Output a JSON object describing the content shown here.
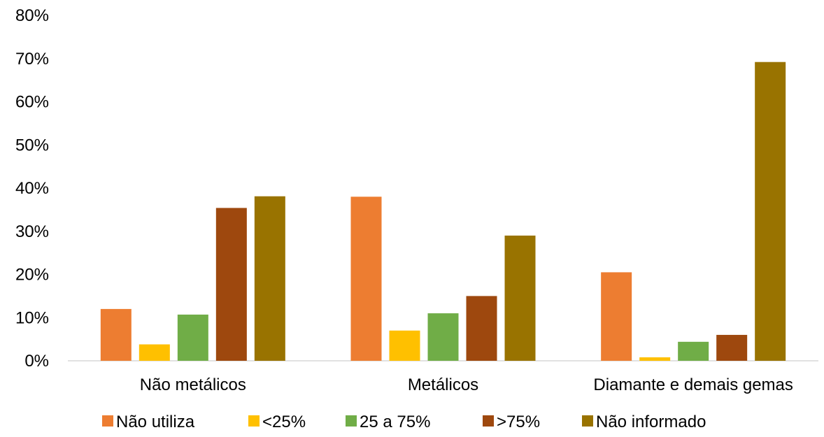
{
  "chart_data": {
    "type": "bar",
    "title": "",
    "xlabel": "",
    "ylabel": "",
    "ylim": [
      0,
      0.8
    ],
    "yticks": [
      "0%",
      "10%",
      "20%",
      "30%",
      "40%",
      "50%",
      "60%",
      "70%",
      "80%"
    ],
    "grid": false,
    "legend_position": "bottom",
    "categories": [
      "Não metálicos",
      "Metálicos",
      "Diamante e demais gemas"
    ],
    "series": [
      {
        "name": "Não utiliza",
        "color": "#ED7D31",
        "values": [
          0.12,
          0.38,
          0.205
        ]
      },
      {
        "name": "<25%",
        "color": "#FFC000",
        "values": [
          0.038,
          0.07,
          0.008
        ]
      },
      {
        "name": "25 a 75%",
        "color": "#70AD47",
        "values": [
          0.107,
          0.11,
          0.044
        ]
      },
      {
        "name": ">75%",
        "color": "#9E480E",
        "values": [
          0.354,
          0.15,
          0.06
        ]
      },
      {
        "name": "Não informado",
        "color": "#997300",
        "values": [
          0.381,
          0.29,
          0.692
        ]
      }
    ]
  }
}
